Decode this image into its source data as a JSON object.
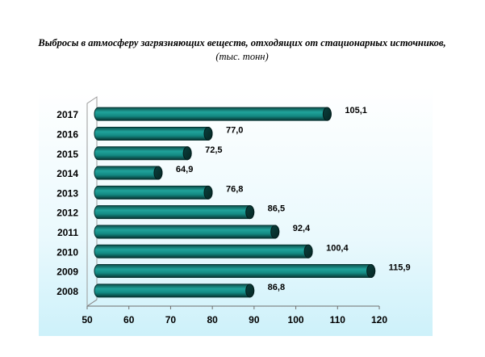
{
  "title_main": "Выбросы в атмосферу загрязняющих веществ, отходящих от стационарных источников,",
  "title_unit": "(тыс. тонн)",
  "chart_data": {
    "type": "bar",
    "orientation": "horizontal",
    "title": "Выбросы в атмосферу загрязняющих веществ, отходящих от стационарных источников, (тыс. тонн)",
    "categories": [
      "2008",
      "2009",
      "2010",
      "2011",
      "2012",
      "2013",
      "2014",
      "2015",
      "2016",
      "2017"
    ],
    "values": [
      86.8,
      115.9,
      100.4,
      92.4,
      86.5,
      76.8,
      64.9,
      72.5,
      77.0,
      105.1
    ],
    "value_labels": [
      "86,8",
      "115,9",
      "100,4",
      "92,4",
      "86,5",
      "76,8",
      "64,9",
      "72,5",
      "77,0",
      "105,1"
    ],
    "bar_ends": [
      89,
      118,
      103,
      95,
      89,
      79,
      67,
      74,
      79,
      107.5
    ],
    "xlim": [
      50,
      120
    ],
    "xticks": [
      "50",
      "60",
      "70",
      "80",
      "90",
      "100",
      "110",
      "120"
    ],
    "xlabel": "",
    "ylabel": "",
    "grid": false,
    "bar_color": "#138a83"
  }
}
